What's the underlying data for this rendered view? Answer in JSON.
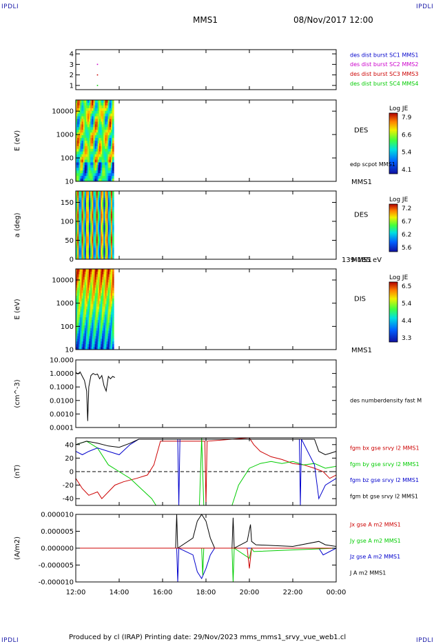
{
  "header": {
    "corner_tl": "IPDLI",
    "corner_tr": "IPDLI",
    "spacecraft": "MMS1",
    "datetime": "08/Nov/2017 12:00"
  },
  "footer": {
    "text": "Produced by cl (IRAP)   Printing date: 29/Nov/2023   mms_mms1_srvy_vue_web1.cl",
    "corner_bl": "IPDLI",
    "corner_br": "IPDLI"
  },
  "time_axis": {
    "tick_labels": [
      "12:00",
      "14:00",
      "16:00",
      "18:00",
      "20:00",
      "22:00",
      "00:00"
    ],
    "range_hours": [
      12,
      24
    ]
  },
  "colors": {
    "blue": "#0000cc",
    "magenta": "#cc00cc",
    "red": "#cc0000",
    "green": "#00cc00",
    "black": "#000000"
  },
  "chart_data": [
    {
      "type": "scatter",
      "panel": "burst-availability",
      "ylabel": "",
      "y_ticks": [
        "1",
        "2",
        "3",
        "4"
      ],
      "ylim": [
        0.6,
        4.4
      ],
      "legend": [
        {
          "label": "des dist burst SC1 MMS1",
          "color": "#0000cc"
        },
        {
          "label": "des dist burst SC2 MMS2",
          "color": "#cc00cc"
        },
        {
          "label": "des dist burst SC3 MMS3",
          "color": "#cc0000"
        },
        {
          "label": "des dist burst SC4 MMS4",
          "color": "#00cc00"
        }
      ],
      "points": [
        {
          "x": 13.0,
          "y": 3,
          "color": "#cc00cc"
        },
        {
          "x": 13.0,
          "y": 2,
          "color": "#cc0000"
        },
        {
          "x": 13.0,
          "y": 1,
          "color": "#00cc00"
        }
      ]
    },
    {
      "type": "heatmap",
      "panel": "des-energy-spectrogram",
      "ylabel": "E (eV)",
      "y_ticks": [
        "10",
        "100",
        "1000",
        "10000"
      ],
      "ylim": [
        10,
        30000
      ],
      "y_scale": "log",
      "data_x_range_hours": [
        12.0,
        13.75
      ],
      "instrument": "DES",
      "extra_label": "edp scpot MMS1",
      "spacecraft": "MMS1",
      "colorbar": {
        "title": "Log JE",
        "ticks": [
          "7.9",
          "6.6",
          "5.4",
          "4.1"
        ]
      }
    },
    {
      "type": "heatmap",
      "panel": "des-pitch-angle",
      "ylabel": "a (deg)",
      "y_ticks": [
        "0",
        "50",
        "100",
        "150"
      ],
      "ylim": [
        0,
        180
      ],
      "data_x_range_hours": [
        12.0,
        13.75
      ],
      "instrument": "DES",
      "spacecraft": "MMS1",
      "energy_range": "139-185 eV",
      "colorbar": {
        "title": "Log JE",
        "ticks": [
          "7.2",
          "6.7",
          "6.2",
          "5.6"
        ]
      }
    },
    {
      "type": "heatmap",
      "panel": "dis-energy-spectrogram",
      "ylabel": "E (eV)",
      "y_ticks": [
        "10",
        "100",
        "1000",
        "10000"
      ],
      "ylim": [
        10,
        30000
      ],
      "y_scale": "log",
      "data_x_range_hours": [
        12.0,
        13.75
      ],
      "instrument": "DIS",
      "spacecraft": "MMS1",
      "colorbar": {
        "title": "Log JE",
        "ticks": [
          "6.5",
          "5.4",
          "4.4",
          "3.3"
        ]
      }
    },
    {
      "type": "line",
      "panel": "number-density",
      "ylabel": "(cm^-3)",
      "y_ticks": [
        "10.000",
        "1.0000",
        "0.1000",
        "0.0100",
        "0.0010",
        "0.0001"
      ],
      "ylim": [
        0.0001,
        10
      ],
      "y_scale": "log",
      "legend": [
        {
          "label": "des numberdensity fast M",
          "color": "#000000"
        }
      ],
      "series": [
        {
          "color": "#000000",
          "x": [
            12.0,
            12.1,
            12.2,
            12.3,
            12.4,
            12.5,
            12.55,
            12.6,
            12.7,
            12.8,
            12.9,
            13.0,
            13.1,
            13.2,
            13.3,
            13.4,
            13.5,
            13.6,
            13.7,
            13.8
          ],
          "y": [
            1.2,
            0.9,
            1.3,
            0.6,
            0.3,
            0.05,
            0.0003,
            0.1,
            0.7,
            1.0,
            0.8,
            0.9,
            0.4,
            0.7,
            0.12,
            0.05,
            0.6,
            0.4,
            0.6,
            0.5
          ]
        }
      ]
    },
    {
      "type": "line",
      "panel": "magnetic-field",
      "ylabel": "(nT)",
      "y_ticks": [
        "40",
        "20",
        "0",
        "-20",
        "-40"
      ],
      "ylim": [
        -50,
        50
      ],
      "zero_line": true,
      "legend": [
        {
          "label": "fgm bx gse srvy l2 MMS1",
          "color": "#cc0000"
        },
        {
          "label": "fgm by gse srvy l2 MMS1",
          "color": "#00cc00"
        },
        {
          "label": "fgm bz gse srvy l2 MMS1",
          "color": "#0000cc"
        },
        {
          "label": "fgm bt gse srvy l2 MMS1",
          "color": "#000000"
        }
      ],
      "series": [
        {
          "color": "#cc0000",
          "x": [
            12.0,
            12.3,
            12.6,
            13.0,
            13.2,
            13.5,
            13.8,
            14.2,
            14.8,
            15.3,
            15.6,
            15.9,
            17.95,
            18.0,
            18.05,
            20.0,
            20.2,
            20.5,
            21.0,
            21.5,
            22.0,
            22.5,
            23.0,
            23.4,
            23.7,
            24.0
          ],
          "y": [
            -10,
            -25,
            -35,
            -30,
            -40,
            -30,
            -20,
            -15,
            -10,
            -5,
            10,
            45,
            45,
            -50,
            45,
            50,
            40,
            30,
            22,
            18,
            12,
            10,
            5,
            0,
            -10,
            -5
          ]
        },
        {
          "color": "#00cc00",
          "x": [
            12.0,
            12.5,
            13.0,
            13.5,
            14.0,
            14.5,
            15.0,
            15.5,
            15.7,
            17.7,
            17.8,
            17.9,
            19.2,
            19.5,
            20.0,
            20.5,
            21.0,
            21.5,
            22.0,
            22.5,
            23.0,
            23.5,
            24.0
          ],
          "y": [
            40,
            45,
            35,
            10,
            0,
            -10,
            -25,
            -40,
            -50,
            -50,
            50,
            -50,
            -50,
            -20,
            5,
            12,
            15,
            12,
            15,
            10,
            12,
            5,
            8
          ]
        },
        {
          "color": "#0000cc",
          "x": [
            12.0,
            12.3,
            12.6,
            13.0,
            13.5,
            14.0,
            14.5,
            14.9,
            16.7,
            16.75,
            16.8,
            22.3,
            22.35,
            22.4,
            23.0,
            23.2,
            23.5,
            24.0
          ],
          "y": [
            30,
            25,
            30,
            35,
            30,
            25,
            40,
            48,
            48,
            -50,
            48,
            48,
            -50,
            48,
            10,
            -40,
            -20,
            -10
          ]
        },
        {
          "color": "#000000",
          "x": [
            12.0,
            12.5,
            13.0,
            13.5,
            14.0,
            14.5,
            14.9,
            23.0,
            23.2,
            23.5,
            23.8,
            24.0
          ],
          "y": [
            40,
            45,
            42,
            38,
            36,
            42,
            48,
            48,
            30,
            25,
            28,
            30
          ]
        }
      ]
    },
    {
      "type": "line",
      "panel": "current-density",
      "ylabel": "(A/m2)",
      "y_ticks": [
        "0.000010",
        "0.000005",
        "0.000000",
        "-0.000005",
        "-0.000010"
      ],
      "ylim": [
        -1e-05,
        1e-05
      ],
      "legend": [
        {
          "label": "Jx gse A m2 MMS1",
          "color": "#cc0000"
        },
        {
          "label": "Jy gse A m2 MMS1",
          "color": "#00cc00"
        },
        {
          "label": "Jz gse A m2 MMS1",
          "color": "#0000cc"
        },
        {
          "label": "J A m2 MMS1",
          "color": "#000000"
        }
      ],
      "series": [
        {
          "color": "#000000",
          "x": [
            12.0,
            16.6,
            16.65,
            16.7,
            17.4,
            17.6,
            17.8,
            18.0,
            18.2,
            18.4,
            19.2,
            19.25,
            19.3,
            19.9,
            20.05,
            20.1,
            20.3,
            22.0,
            23.2,
            23.5,
            24.0
          ],
          "y": [
            0,
            0,
            1e-05,
            0,
            3e-06,
            8e-06,
            1e-05,
            8e-06,
            3e-06,
            0,
            0,
            9e-06,
            0,
            2e-06,
            7e-06,
            2e-06,
            1e-06,
            5e-07,
            2e-06,
            1e-06,
            5e-07
          ]
        },
        {
          "color": "#0000cc",
          "x": [
            12.0,
            16.65,
            16.7,
            16.75,
            17.4,
            17.6,
            17.8,
            18.0,
            18.2,
            18.4,
            23.2,
            23.4,
            24.0
          ],
          "y": [
            0,
            0,
            -1e-05,
            0,
            -2e-06,
            -7e-06,
            -9e-06,
            -6e-06,
            -2e-06,
            0,
            0,
            -2e-06,
            0
          ]
        },
        {
          "color": "#00cc00",
          "x": [
            12.0,
            17.8,
            17.85,
            17.9,
            19.2,
            19.25,
            19.3,
            20.0,
            20.1,
            20.2,
            24.0
          ],
          "y": [
            0,
            0,
            -8e-06,
            0,
            0,
            -1e-05,
            0,
            -3e-06,
            0,
            -1e-06,
            0
          ]
        },
        {
          "color": "#cc0000",
          "x": [
            12.0,
            19.9,
            20.0,
            20.1,
            24.0
          ],
          "y": [
            0,
            0,
            -6e-06,
            0,
            0
          ]
        }
      ]
    }
  ]
}
